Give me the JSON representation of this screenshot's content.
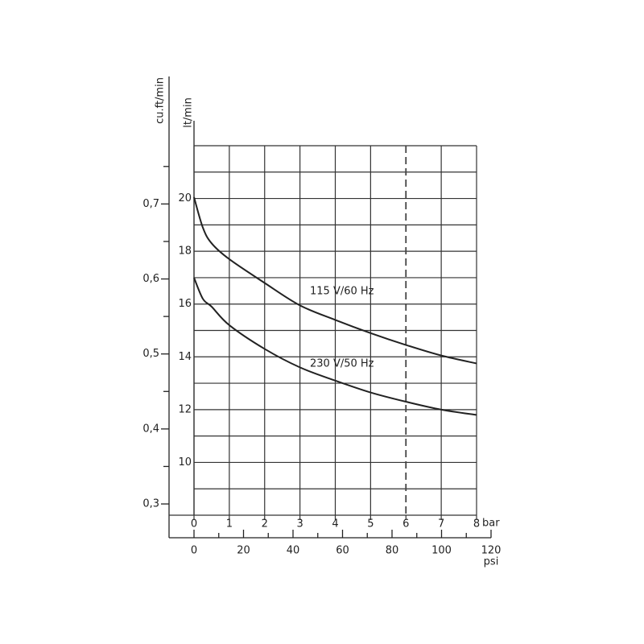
{
  "chart_data": {
    "type": "line",
    "x": [
      0,
      0.25,
      0.5,
      1,
      2,
      3,
      4,
      5,
      6,
      7,
      8
    ],
    "series": [
      {
        "name": "115 V/60 Hz",
        "color": "#222222",
        "values": [
          20.05,
          18.9,
          18.3,
          17.7,
          16.8,
          15.95,
          15.4,
          14.9,
          14.45,
          14.05,
          13.75
        ]
      },
      {
        "name": "230 V/50 Hz",
        "color": "#222222",
        "values": [
          17.0,
          16.2,
          15.9,
          15.2,
          14.3,
          13.6,
          13.1,
          12.65,
          12.3,
          12.0,
          11.8
        ]
      }
    ],
    "xlim": [
      0,
      8
    ],
    "xticks": [
      0,
      1,
      2,
      3,
      4,
      5,
      6,
      7,
      8
    ],
    "xlabel": "bar",
    "x2lim": [
      0,
      120
    ],
    "x2ticks": [
      0,
      20,
      40,
      60,
      80,
      100,
      120
    ],
    "x2minor_ticks": [
      10,
      30,
      50,
      70,
      90,
      110
    ],
    "x2label": "psi",
    "ylim": [
      8,
      22
    ],
    "yticks": [
      10,
      12,
      14,
      16,
      18,
      20
    ],
    "ygrid": [
      8,
      9,
      10,
      11,
      12,
      13,
      14,
      15,
      16,
      17,
      18,
      19,
      20,
      21,
      22
    ],
    "ylabel": "lt/min",
    "y2lim": [
      0.285,
      0.87
    ],
    "y2ticks": [
      {
        "value": 0.3,
        "label": "0,3"
      },
      {
        "value": 0.4,
        "label": "0,4"
      },
      {
        "value": 0.5,
        "label": "0,5"
      },
      {
        "value": 0.6,
        "label": "0,6"
      },
      {
        "value": 0.7,
        "label": "0,7"
      }
    ],
    "y2minor_ticks": [
      0.35,
      0.45,
      0.55,
      0.65,
      0.75
    ],
    "y2label": "cu.ft/min",
    "dashed_x": 6,
    "grid": true
  }
}
